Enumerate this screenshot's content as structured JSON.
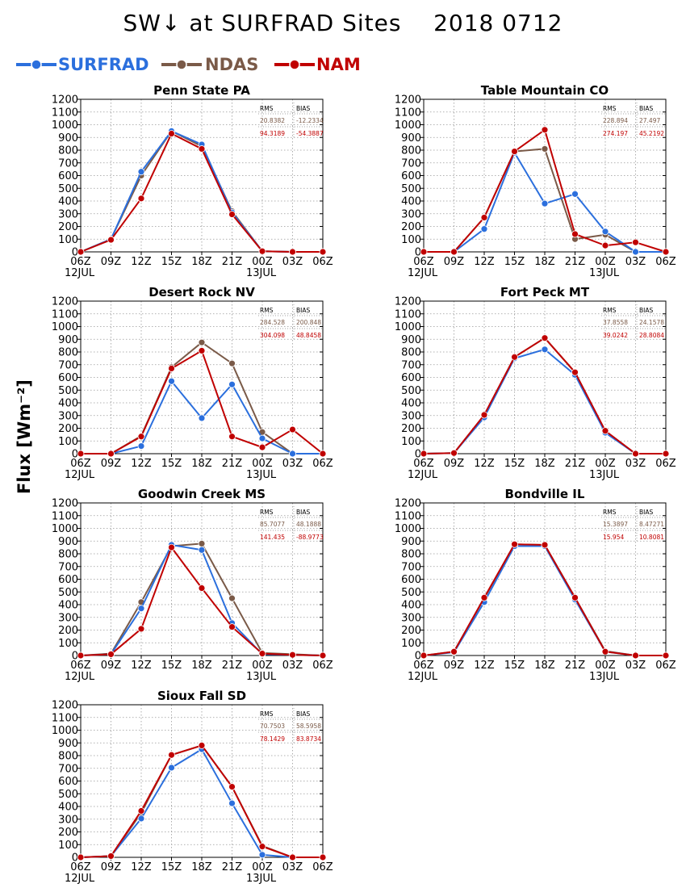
{
  "title": "SW↓ at SURFRAD Sites    2018 0712",
  "ylabel": "Flux [Wm⁻²]",
  "legend": [
    {
      "name": "SURFRAD",
      "color": "#2b6fdd"
    },
    {
      "name": "NDAS",
      "color": "#7a5a48"
    },
    {
      "name": "NAM",
      "color": "#c00000"
    }
  ],
  "stats_headers": {
    "rms": "RMS",
    "bias": "BIAS"
  },
  "chart_data": [
    {
      "type": "line",
      "title": "Penn State PA",
      "x": [
        "06Z",
        "09Z",
        "12Z",
        "15Z",
        "18Z",
        "21Z",
        "00Z",
        "03Z",
        "06Z"
      ],
      "date_labels": [
        "12JUL",
        "13JUL"
      ],
      "ylim": [
        0,
        1200
      ],
      "grid": true,
      "series": [
        {
          "name": "SURFRAD",
          "values": [
            0,
            100,
            630,
            950,
            845,
            310,
            5,
            0,
            0
          ]
        },
        {
          "name": "NDAS",
          "values": [
            0,
            100,
            600,
            950,
            830,
            320,
            5,
            0,
            0
          ]
        },
        {
          "name": "NAM",
          "values": [
            0,
            95,
            420,
            930,
            810,
            295,
            5,
            0,
            0
          ]
        }
      ],
      "stats": {
        "ndas": [
          "20.8382",
          "-12.2334"
        ],
        "nam": [
          "94.3189",
          "-54.3887"
        ]
      }
    },
    {
      "type": "line",
      "title": "Table Mountain CO",
      "x": [
        "06Z",
        "09Z",
        "12Z",
        "15Z",
        "18Z",
        "21Z",
        "00Z",
        "03Z",
        "06Z"
      ],
      "date_labels": [
        "12JUL",
        "13JUL"
      ],
      "ylim": [
        0,
        1200
      ],
      "grid": true,
      "series": [
        {
          "name": "SURFRAD",
          "values": [
            0,
            0,
            180,
            780,
            380,
            455,
            160,
            0,
            0
          ]
        },
        {
          "name": "NDAS",
          "values": [
            0,
            0,
            270,
            790,
            810,
            100,
            135,
            0,
            0
          ]
        },
        {
          "name": "NAM",
          "values": [
            0,
            0,
            270,
            790,
            960,
            140,
            50,
            75,
            0
          ]
        }
      ],
      "stats": {
        "ndas": [
          "228.894",
          "27.497"
        ],
        "nam": [
          "274.197",
          "45.2192"
        ]
      }
    },
    {
      "type": "line",
      "title": "Desert Rock NV",
      "x": [
        "06Z",
        "09Z",
        "12Z",
        "15Z",
        "18Z",
        "21Z",
        "00Z",
        "03Z",
        "06Z"
      ],
      "date_labels": [
        "12JUL",
        "13JUL"
      ],
      "ylim": [
        0,
        1200
      ],
      "grid": true,
      "series": [
        {
          "name": "SURFRAD",
          "values": [
            0,
            0,
            60,
            570,
            280,
            545,
            120,
            0,
            0
          ]
        },
        {
          "name": "NDAS",
          "values": [
            0,
            0,
            140,
            680,
            875,
            710,
            170,
            0,
            0
          ]
        },
        {
          "name": "NAM",
          "values": [
            0,
            0,
            135,
            670,
            810,
            135,
            50,
            190,
            0
          ]
        }
      ],
      "stats": {
        "ndas": [
          "284.528",
          "200.848"
        ],
        "nam": [
          "304.098",
          "48.8458"
        ]
      }
    },
    {
      "type": "line",
      "title": "Fort Peck MT",
      "x": [
        "06Z",
        "09Z",
        "12Z",
        "15Z",
        "18Z",
        "21Z",
        "00Z",
        "03Z",
        "06Z"
      ],
      "date_labels": [
        "12JUL",
        "13JUL"
      ],
      "ylim": [
        0,
        1200
      ],
      "grid": true,
      "series": [
        {
          "name": "SURFRAD",
          "values": [
            0,
            5,
            285,
            750,
            820,
            620,
            165,
            0,
            0
          ]
        },
        {
          "name": "NDAS",
          "values": [
            0,
            5,
            300,
            760,
            910,
            640,
            175,
            0,
            0
          ]
        },
        {
          "name": "NAM",
          "values": [
            0,
            5,
            305,
            760,
            910,
            640,
            180,
            0,
            0
          ]
        }
      ],
      "stats": {
        "ndas": [
          "37.8558",
          "24.1578"
        ],
        "nam": [
          "39.0242",
          "28.8084"
        ]
      }
    },
    {
      "type": "line",
      "title": "Goodwin Creek MS",
      "x": [
        "06Z",
        "09Z",
        "12Z",
        "15Z",
        "18Z",
        "21Z",
        "00Z",
        "03Z",
        "06Z"
      ],
      "date_labels": [
        "12JUL",
        "13JUL"
      ],
      "ylim": [
        0,
        1200
      ],
      "grid": true,
      "series": [
        {
          "name": "SURFRAD",
          "values": [
            0,
            10,
            370,
            870,
            830,
            255,
            10,
            5,
            0
          ]
        },
        {
          "name": "NDAS",
          "values": [
            0,
            15,
            420,
            860,
            880,
            450,
            20,
            10,
            0
          ]
        },
        {
          "name": "NAM",
          "values": [
            0,
            10,
            210,
            850,
            530,
            225,
            15,
            5,
            0
          ]
        }
      ],
      "stats": {
        "ndas": [
          "85.7077",
          "48.1888"
        ],
        "nam": [
          "141.435",
          "-88.9773"
        ]
      }
    },
    {
      "type": "line",
      "title": "Bondville IL",
      "x": [
        "06Z",
        "09Z",
        "12Z",
        "15Z",
        "18Z",
        "21Z",
        "00Z",
        "03Z",
        "06Z"
      ],
      "date_labels": [
        "12JUL",
        "13JUL"
      ],
      "ylim": [
        0,
        1200
      ],
      "grid": true,
      "series": [
        {
          "name": "SURFRAD",
          "values": [
            0,
            25,
            420,
            860,
            860,
            440,
            30,
            0,
            0
          ]
        },
        {
          "name": "NDAS",
          "values": [
            0,
            30,
            450,
            875,
            870,
            455,
            35,
            0,
            0
          ]
        },
        {
          "name": "NAM",
          "values": [
            0,
            30,
            455,
            875,
            870,
            455,
            30,
            0,
            0
          ]
        }
      ],
      "stats": {
        "ndas": [
          "15.3897",
          "8.47271"
        ],
        "nam": [
          "15.954",
          "10.8081"
        ]
      }
    },
    {
      "type": "line",
      "title": "Sioux Fall SD",
      "x": [
        "06Z",
        "09Z",
        "12Z",
        "15Z",
        "18Z",
        "21Z",
        "00Z",
        "03Z",
        "06Z"
      ],
      "date_labels": [
        "12JUL",
        "13JUL"
      ],
      "ylim": [
        0,
        1200
      ],
      "grid": true,
      "series": [
        {
          "name": "SURFRAD",
          "values": [
            0,
            10,
            305,
            705,
            850,
            425,
            20,
            0,
            0
          ]
        },
        {
          "name": "NDAS",
          "values": [
            0,
            10,
            350,
            805,
            880,
            555,
            90,
            0,
            0
          ]
        },
        {
          "name": "NAM",
          "values": [
            0,
            10,
            365,
            805,
            880,
            555,
            85,
            0,
            0
          ]
        }
      ],
      "stats": {
        "ndas": [
          "70.7503",
          "58.5958"
        ],
        "nam": [
          "78.1429",
          "83.8734"
        ]
      }
    }
  ]
}
